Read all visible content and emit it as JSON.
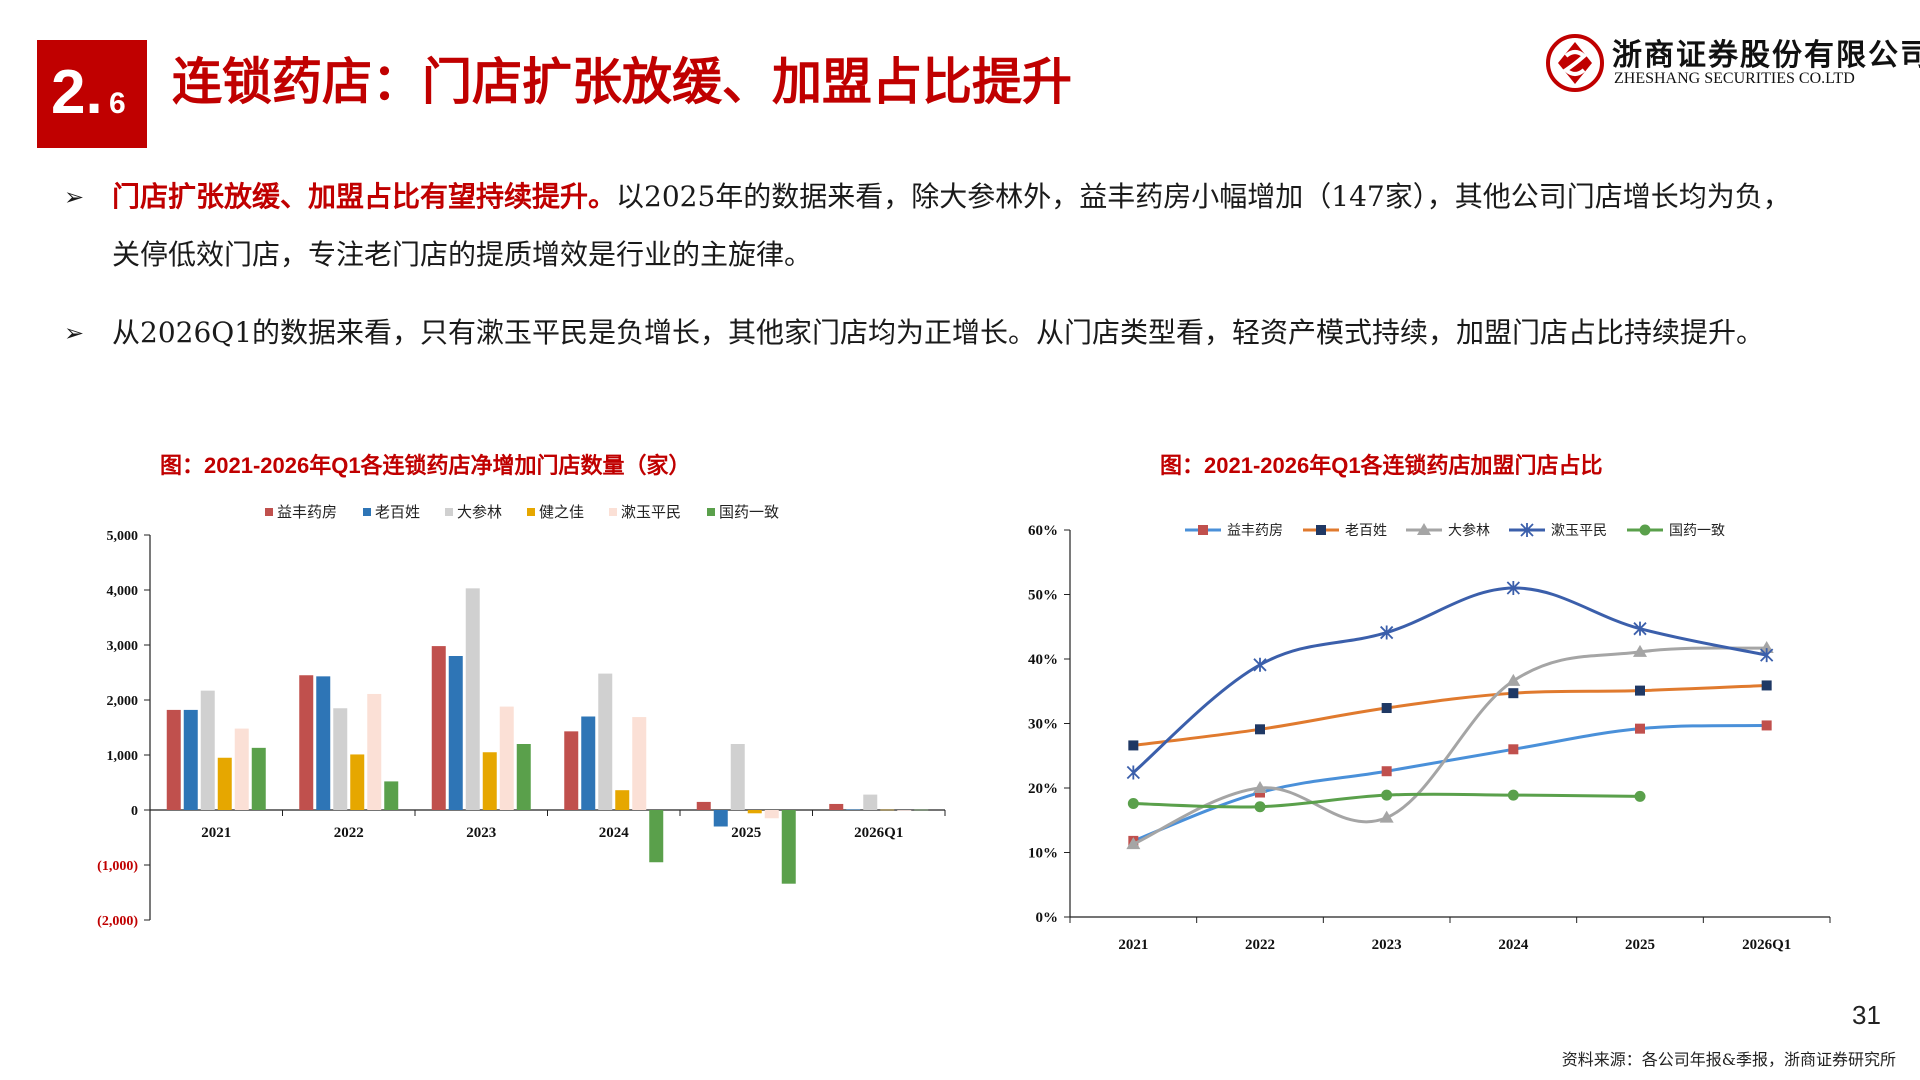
{
  "header": {
    "section_main": "2.",
    "section_sub": "6",
    "title": "连锁药店：门店扩张放缓、加盟占比提升",
    "logo_cn": "浙商证券股份有限公司",
    "logo_en": "ZHESHANG SECURITIES CO.LTD",
    "brand_color": "#c00000"
  },
  "bullets": [
    {
      "marker": "➢",
      "emphasis": "门店扩张放缓、加盟占比有望持续提升。",
      "text": "以2025年的数据来看，除大参林外，益丰药房小幅增加（147家），其他公司门店增长均为负，关停低效门店，专注老门店的提质增效是行业的主旋律。"
    },
    {
      "marker": "➢",
      "emphasis": "",
      "text": "从2026Q1的数据来看，只有漱玉平民是负增长，其他家门店均为正增长。从门店类型看，轻资产模式持续，加盟门店占比持续提升。"
    }
  ],
  "chart_data": [
    {
      "type": "bar",
      "title": "图：2021-2026年Q1各连锁药店净增加门店数量（家）",
      "categories": [
        "2021",
        "2022",
        "2023",
        "2024",
        "2025",
        "2026Q1"
      ],
      "ylim": [
        -2000,
        5000
      ],
      "yticks": [
        5000,
        4000,
        3000,
        2000,
        1000,
        0,
        -1000,
        -2000
      ],
      "ytick_labels": [
        "5,000",
        "4,000",
        "3,000",
        "2,000",
        "1,000",
        "0",
        "(1,000)",
        "(2,000)"
      ],
      "negative_tick_color": "#c00000",
      "legend_position": "top",
      "series": [
        {
          "name": "益丰药房",
          "color": "#c0504d",
          "values": [
            1820,
            2450,
            2980,
            1430,
            147,
            110
          ]
        },
        {
          "name": "老百姓",
          "color": "#2e75b6",
          "values": [
            1820,
            2430,
            2800,
            1700,
            -300,
            10
          ]
        },
        {
          "name": "大参林",
          "color": "#d0d0d0",
          "values": [
            2170,
            1850,
            4030,
            2480,
            1200,
            280
          ]
        },
        {
          "name": "健之佳",
          "color": "#e6a700",
          "values": [
            950,
            1010,
            1050,
            360,
            -60,
            5
          ]
        },
        {
          "name": "漱玉平民",
          "color": "#fbe0d6",
          "values": [
            1480,
            2110,
            1880,
            1690,
            -150,
            -10
          ]
        },
        {
          "name": "国药一致",
          "color": "#5aa04b",
          "values": [
            1130,
            520,
            1200,
            -950,
            -1340,
            5
          ]
        }
      ]
    },
    {
      "type": "line",
      "title": "图：2021-2026年Q1各连锁药店加盟门店占比",
      "categories": [
        "2021",
        "2022",
        "2023",
        "2024",
        "2025",
        "2026Q1"
      ],
      "ylim": [
        0,
        60
      ],
      "yticks": [
        0,
        10,
        20,
        30,
        40,
        50,
        60
      ],
      "ytick_labels": [
        "0%",
        "10%",
        "20%",
        "30%",
        "40%",
        "50%",
        "60%"
      ],
      "legend_position": "top",
      "series": [
        {
          "name": "益丰药房",
          "color": "#4a90d9",
          "marker": "square",
          "marker_color": "#c0504d",
          "values": [
            11.8,
            19.3,
            22.6,
            26.0,
            29.2,
            29.7
          ]
        },
        {
          "name": "老百姓",
          "color": "#e07a2e",
          "marker": "square",
          "marker_color": "#1f3864",
          "values": [
            26.6,
            29.1,
            32.4,
            34.7,
            35.1,
            35.9
          ]
        },
        {
          "name": "大参林",
          "color": "#a5a5a5",
          "marker": "triangle",
          "marker_color": "#a5a5a5",
          "values": [
            11.3,
            20.0,
            15.4,
            36.6,
            41.1,
            41.7
          ]
        },
        {
          "name": "漱玉平民",
          "color": "#3b5fab",
          "marker": "star",
          "marker_color": "#3b5fab",
          "values": [
            22.4,
            39.1,
            44.1,
            51.0,
            44.7,
            40.6
          ]
        },
        {
          "name": "国药一致",
          "color": "#5aa04b",
          "marker": "circle",
          "marker_color": "#5aa04b",
          "values": [
            17.6,
            17.1,
            18.9,
            18.9,
            18.7,
            null
          ]
        }
      ]
    }
  ],
  "footer": {
    "page_number": "31",
    "source": "资料来源：各公司年报&季报，浙商证券研究所"
  }
}
